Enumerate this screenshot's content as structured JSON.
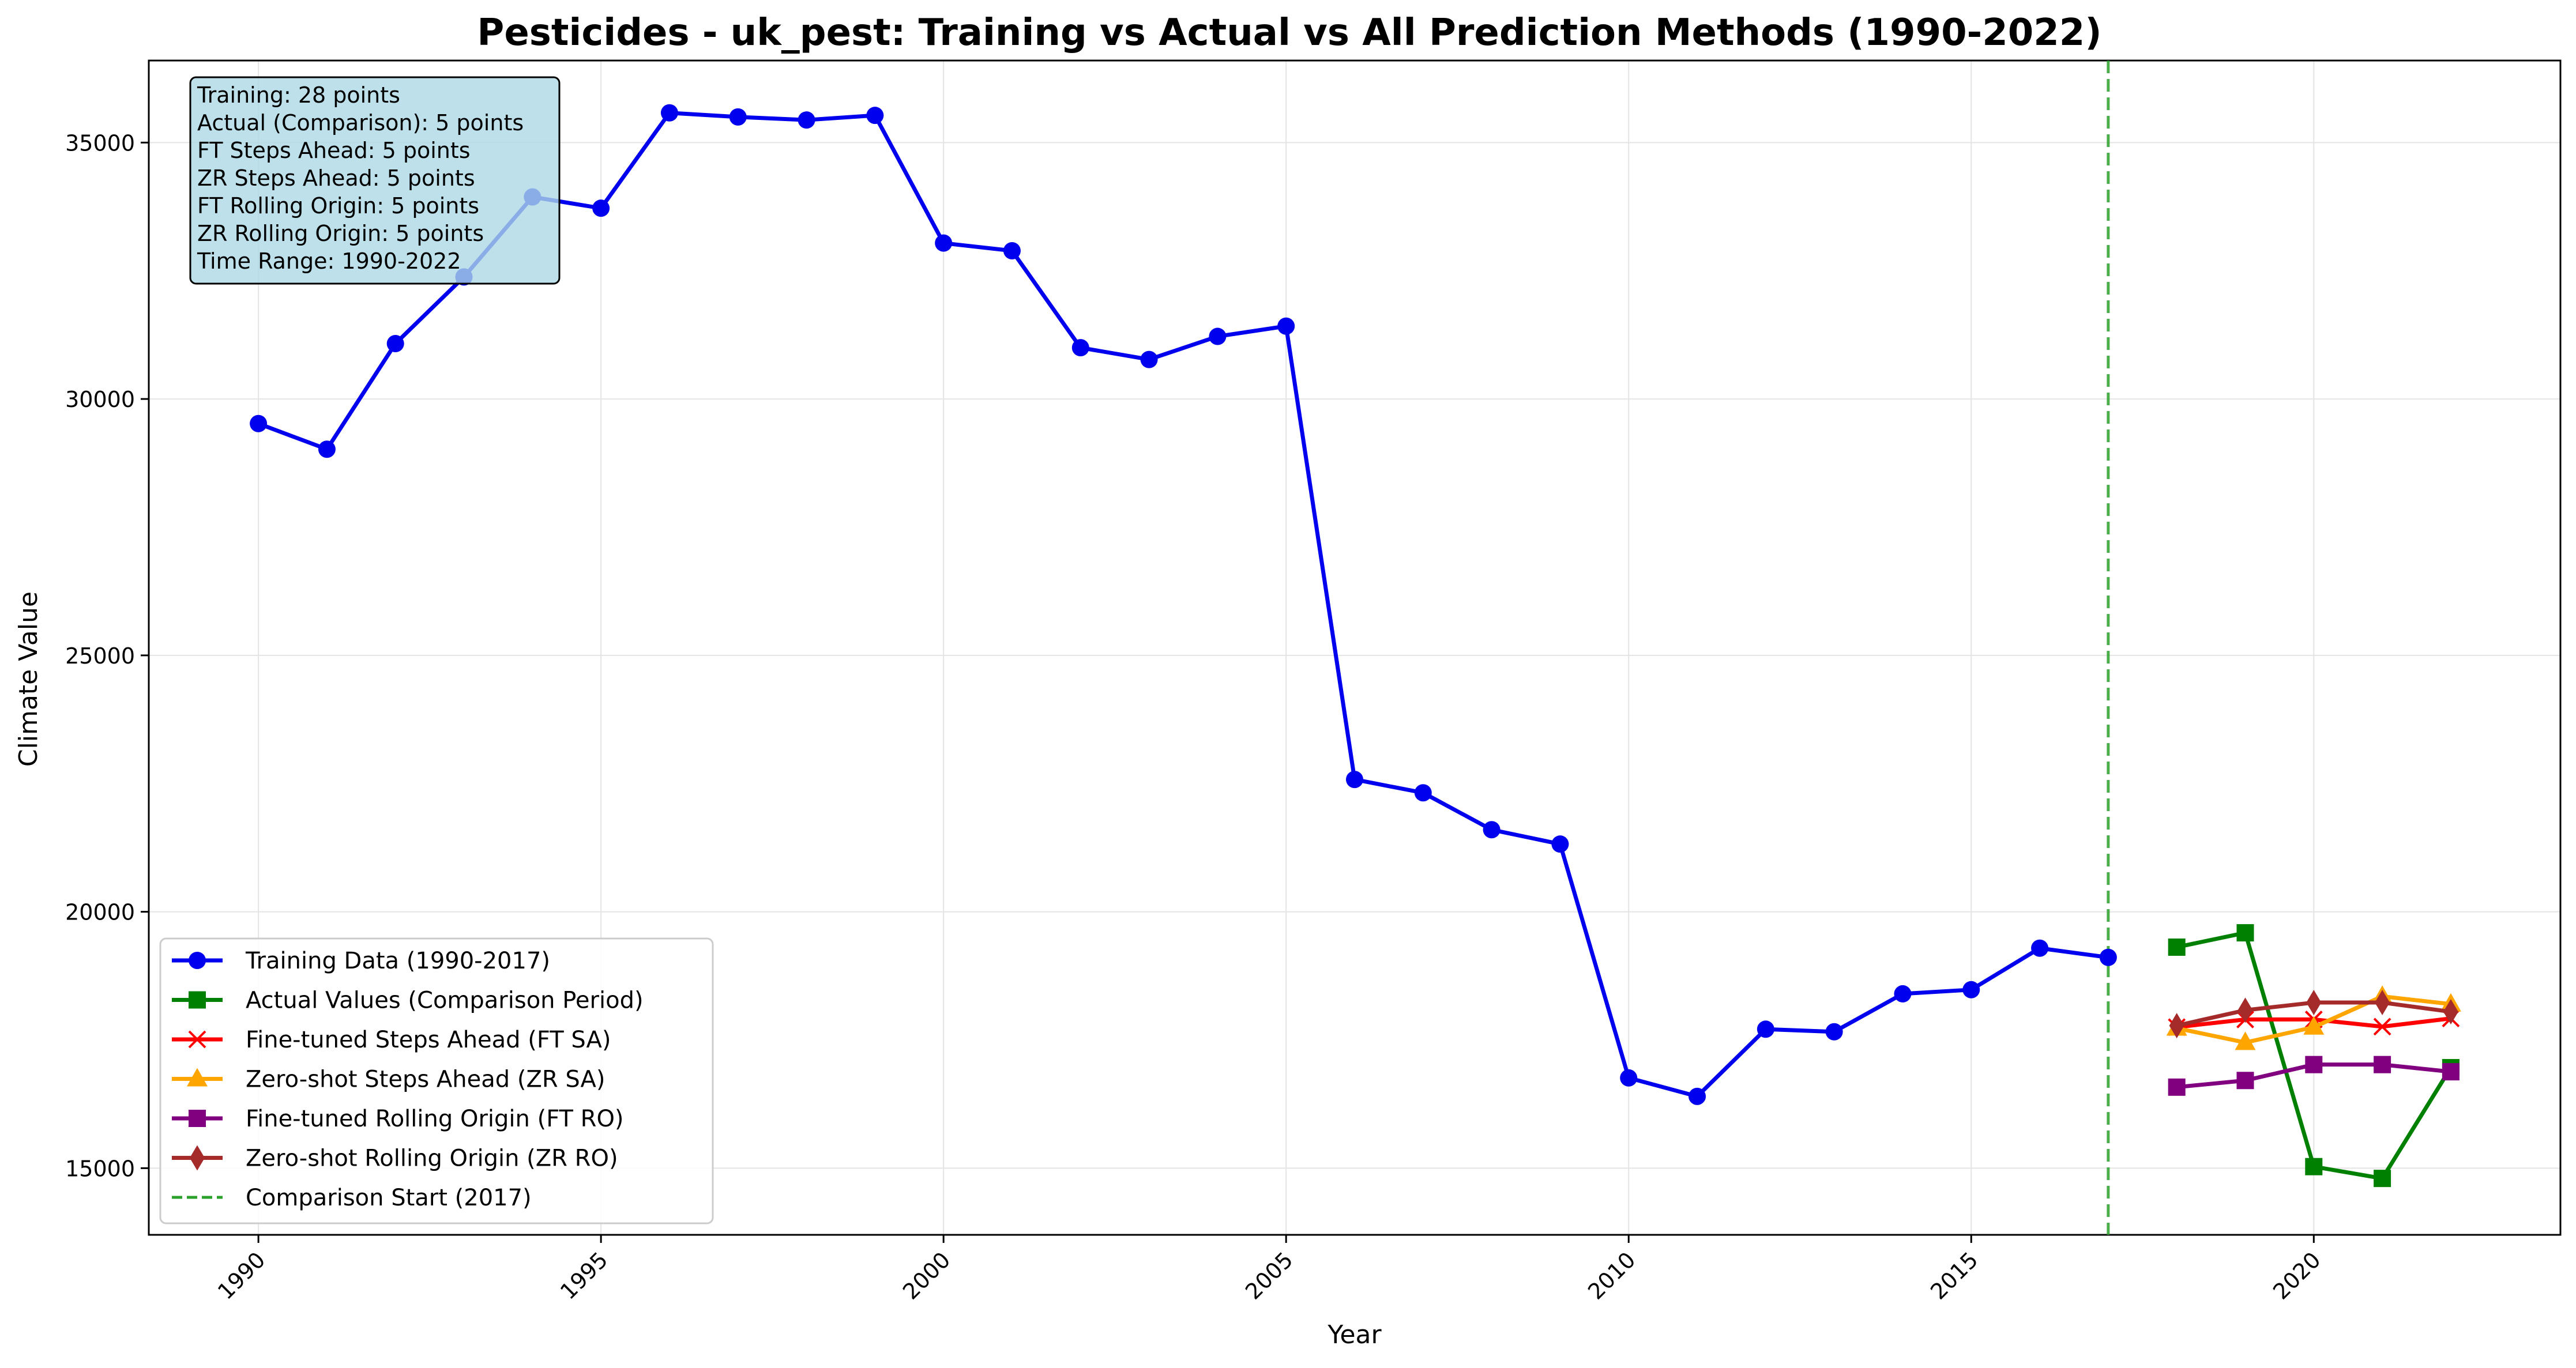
{
  "chart_data": {
    "type": "line",
    "title": "Pesticides - uk_pest: Training vs Actual vs All Prediction Methods (1990-2022)",
    "xlabel": "Year",
    "ylabel": "Climate Value",
    "xlim": [
      1988.4,
      2023.6
    ],
    "ylim": [
      13700,
      36600
    ],
    "x_ticks": [
      1990,
      1995,
      2000,
      2005,
      2010,
      2015,
      2020
    ],
    "y_ticks": [
      15000,
      20000,
      25000,
      30000,
      35000
    ],
    "grid": true,
    "legend_position": "lower-left",
    "series": [
      {
        "name": "Training Data (1990-2017)",
        "color": "#0000ee",
        "marker": "circle",
        "x": [
          1990,
          1991,
          1992,
          1993,
          1994,
          1995,
          1996,
          1997,
          1998,
          1999,
          2000,
          2001,
          2002,
          2003,
          2004,
          2005,
          2006,
          2007,
          2008,
          2009,
          2010,
          2011,
          2012,
          2013,
          2014,
          2015,
          2016,
          2017
        ],
        "values": [
          29520,
          29020,
          31080,
          32380,
          33940,
          33720,
          35580,
          35500,
          35440,
          35530,
          33040,
          32890,
          31000,
          30770,
          31220,
          31420,
          22580,
          22320,
          21600,
          21320,
          16760,
          16400,
          17710,
          17660,
          18400,
          18480,
          19290,
          19110
        ]
      },
      {
        "name": "Actual Values (Comparison Period)",
        "color": "#008000",
        "marker": "square",
        "x": [
          2018,
          2019,
          2020,
          2021,
          2022
        ],
        "values": [
          19310,
          19590,
          15030,
          14800,
          16960
        ]
      },
      {
        "name": "Fine-tuned Steps Ahead (FT SA)",
        "color": "#ff0000",
        "marker": "x",
        "x": [
          2018,
          2019,
          2020,
          2021,
          2022
        ],
        "values": [
          17750,
          17900,
          17900,
          17760,
          17920
        ]
      },
      {
        "name": "Zero-shot Steps Ahead (ZR SA)",
        "color": "#ffa500",
        "marker": "triangle",
        "x": [
          2018,
          2019,
          2020,
          2021,
          2022
        ],
        "values": [
          17730,
          17450,
          17750,
          18350,
          18200
        ]
      },
      {
        "name": "Fine-tuned Rolling Origin (FT RO)",
        "color": "#800080",
        "marker": "square",
        "x": [
          2018,
          2019,
          2020,
          2021,
          2022
        ],
        "values": [
          16580,
          16710,
          17020,
          17020,
          16880
        ]
      },
      {
        "name": "Zero-shot Rolling Origin (ZR RO)",
        "color": "#a52a2a",
        "marker": "diamond",
        "x": [
          2018,
          2019,
          2020,
          2021,
          2022
        ],
        "values": [
          17780,
          18080,
          18230,
          18230,
          18050
        ]
      }
    ],
    "vline": {
      "name": "Comparison Start (2017)",
      "x": 2017,
      "color": "#2ca02c",
      "style": "dashed"
    },
    "info_box": [
      "Training: 28 points",
      "Actual (Comparison): 5 points",
      "FT Steps Ahead: 5 points",
      "ZR Steps Ahead: 5 points",
      "FT Rolling Origin: 5 points",
      "ZR Rolling Origin: 5 points",
      "Time Range: 1990-2022"
    ],
    "info_box_color": "#add8e6"
  }
}
